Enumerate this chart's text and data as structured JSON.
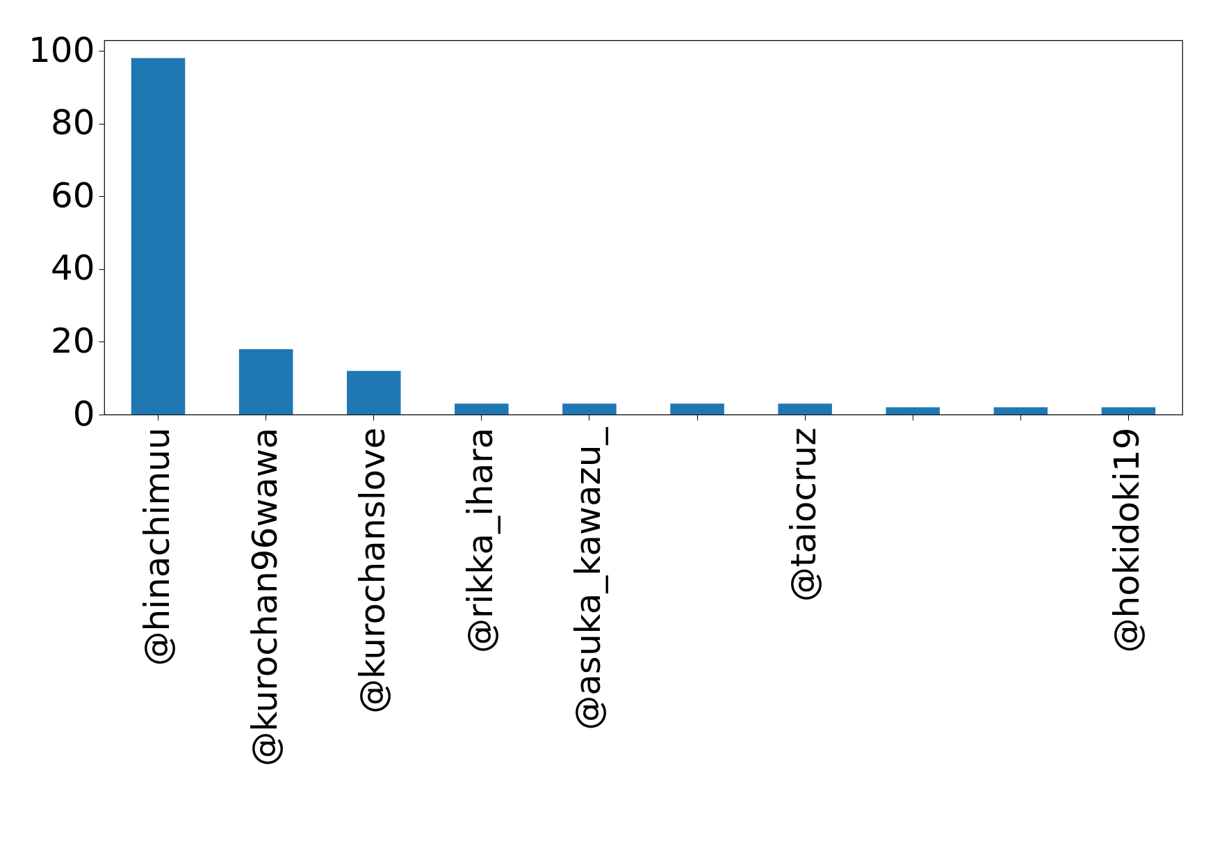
{
  "chart_data": {
    "type": "bar",
    "categories": [
      "@hinachimuu",
      "@kurochan96wawa",
      "@kurochanslove",
      "@rikka_ihara",
      "@asuka_kawazu_",
      null,
      "@taiocruz",
      null,
      null,
      "@hokidoki19"
    ],
    "values": [
      98,
      18,
      12,
      3,
      3,
      3,
      3,
      2,
      2,
      2
    ],
    "color": "#1f77b4",
    "ylim": [
      0,
      102.9
    ],
    "yticks": [
      0,
      20,
      40,
      60,
      80,
      100
    ],
    "grid": false
  }
}
